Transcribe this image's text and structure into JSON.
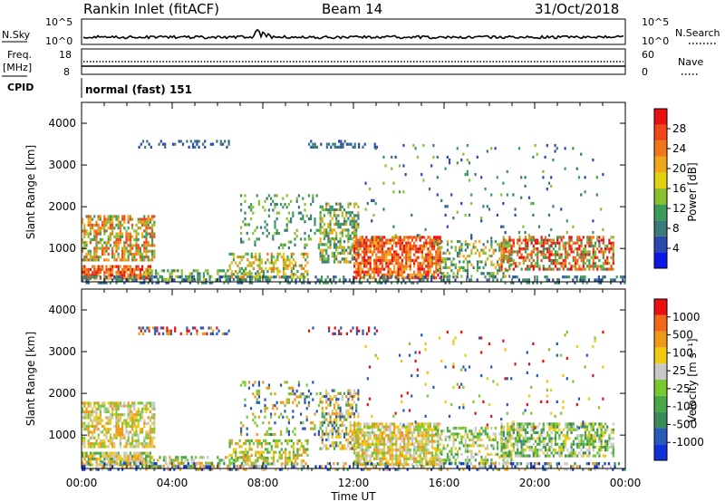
{
  "header": {
    "station": "Rankin Inlet (fitACF)",
    "beam": "Beam 14",
    "date": "31/Oct/2018"
  },
  "sidepanel": {
    "nsky_label": "N.Sky",
    "nsky_ticks": [
      "10^5",
      "10^0"
    ],
    "nsearch_label": "N.Search",
    "nsearch_ticks": [
      "10^5",
      "10^0"
    ],
    "freq_label": "Freq.",
    "freq_unit": "[MHz]",
    "freq_ticks": [
      "18",
      "8"
    ],
    "nave_label": "Nave",
    "nave_ticks": [
      "60",
      "0"
    ],
    "cpid_label": "CPID",
    "cpid_text": "normal (fast) 151"
  },
  "colors": {
    "power_scale": [
      "#0a18e8",
      "#2c48b0",
      "#3a7a78",
      "#3c9a5a",
      "#88c030",
      "#e0d010",
      "#f0a818",
      "#f07818",
      "#f04818",
      "#e81010"
    ],
    "velocity_scale": [
      "#1030d8",
      "#2858b8",
      "#3a8a5a",
      "#48a848",
      "#78c830",
      "#c8c8c8",
      "#f0c810",
      "#f09818",
      "#f06818",
      "#e81010"
    ]
  },
  "chart_data": [
    {
      "type": "heatmap",
      "name": "power",
      "xlabel": "",
      "ylabel": "Slant Range [km]",
      "xlim": [
        0,
        24
      ],
      "ylim": [
        200,
        4500
      ],
      "yticks": [
        1000,
        2000,
        3000,
        4000
      ],
      "colorbar_label": "Power [dB]",
      "colorbar_ticks": [
        "28",
        "24",
        "20",
        "16",
        "12",
        "8",
        "4"
      ],
      "colorbar_range": [
        0,
        30
      ]
    },
    {
      "type": "heatmap",
      "name": "velocity",
      "xlabel": "Time UT",
      "ylabel": "Slant Range [km]",
      "xlim": [
        0,
        24
      ],
      "ylim": [
        200,
        4500
      ],
      "xticks": [
        "00:00",
        "04:00",
        "08:00",
        "12:00",
        "16:00",
        "20:00",
        "00:00"
      ],
      "yticks": [
        1000,
        2000,
        3000,
        4000
      ],
      "colorbar_label": "Velocity [m s⁻¹]",
      "colorbar_ticks": [
        "1000",
        "500",
        "100",
        "25",
        "-25",
        "-100",
        "-500",
        "-1000"
      ],
      "colorbar_range": [
        -1000,
        1000
      ]
    }
  ]
}
